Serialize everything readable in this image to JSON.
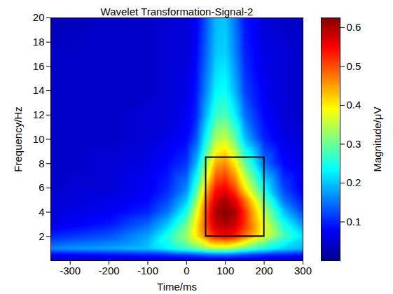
{
  "chart_data": {
    "type": "heatmap",
    "title": "Wavelet Transformation-Signal-2",
    "x_label": "Time/ms",
    "y_label": "Frequency/Hz",
    "xlim": [
      -350,
      300
    ],
    "xticks": [
      -300,
      -200,
      -100,
      0,
      100,
      200,
      300
    ],
    "ylim": [
      0,
      20
    ],
    "yticks": [
      2,
      4,
      6,
      8,
      10,
      12,
      14,
      16,
      18,
      20
    ],
    "x": [
      -350,
      -300,
      -200,
      -100,
      -50,
      0,
      25,
      50,
      75,
      100,
      125,
      150,
      200,
      250,
      300
    ],
    "y": [
      0,
      0.5,
      1,
      2,
      3,
      4,
      5,
      6,
      8,
      10,
      12,
      14,
      17,
      20
    ],
    "values": [
      [
        0.04,
        0.04,
        0.04,
        0.04,
        0.04,
        0.04,
        0.04,
        0.05,
        0.05,
        0.05,
        0.05,
        0.05,
        0.04,
        0.04,
        0.04
      ],
      [
        0.08,
        0.08,
        0.09,
        0.1,
        0.11,
        0.12,
        0.13,
        0.14,
        0.15,
        0.15,
        0.14,
        0.13,
        0.11,
        0.1,
        0.09
      ],
      [
        0.16,
        0.17,
        0.18,
        0.2,
        0.23,
        0.27,
        0.3,
        0.33,
        0.35,
        0.35,
        0.33,
        0.3,
        0.25,
        0.21,
        0.19
      ],
      [
        0.1,
        0.11,
        0.13,
        0.18,
        0.25,
        0.33,
        0.4,
        0.47,
        0.53,
        0.55,
        0.53,
        0.48,
        0.37,
        0.28,
        0.22
      ],
      [
        0.06,
        0.07,
        0.09,
        0.14,
        0.2,
        0.3,
        0.4,
        0.5,
        0.58,
        0.6,
        0.58,
        0.52,
        0.38,
        0.25,
        0.17
      ],
      [
        0.05,
        0.06,
        0.07,
        0.1,
        0.15,
        0.25,
        0.37,
        0.5,
        0.6,
        0.62,
        0.6,
        0.52,
        0.35,
        0.2,
        0.12
      ],
      [
        0.05,
        0.05,
        0.06,
        0.08,
        0.12,
        0.2,
        0.32,
        0.47,
        0.57,
        0.6,
        0.56,
        0.48,
        0.3,
        0.15,
        0.09
      ],
      [
        0.04,
        0.05,
        0.05,
        0.07,
        0.1,
        0.16,
        0.27,
        0.42,
        0.53,
        0.55,
        0.5,
        0.4,
        0.24,
        0.12,
        0.07
      ],
      [
        0.04,
        0.04,
        0.05,
        0.06,
        0.08,
        0.11,
        0.19,
        0.32,
        0.44,
        0.46,
        0.4,
        0.3,
        0.15,
        0.08,
        0.06
      ],
      [
        0.04,
        0.04,
        0.04,
        0.05,
        0.06,
        0.08,
        0.13,
        0.24,
        0.34,
        0.36,
        0.3,
        0.2,
        0.1,
        0.06,
        0.05
      ],
      [
        0.04,
        0.04,
        0.04,
        0.05,
        0.05,
        0.07,
        0.1,
        0.19,
        0.27,
        0.28,
        0.23,
        0.15,
        0.08,
        0.05,
        0.04
      ],
      [
        0.04,
        0.04,
        0.04,
        0.04,
        0.05,
        0.06,
        0.09,
        0.16,
        0.23,
        0.24,
        0.19,
        0.12,
        0.07,
        0.05,
        0.04
      ],
      [
        0.04,
        0.04,
        0.04,
        0.04,
        0.05,
        0.05,
        0.08,
        0.14,
        0.2,
        0.21,
        0.16,
        0.1,
        0.06,
        0.05,
        0.04
      ],
      [
        0.03,
        0.03,
        0.04,
        0.04,
        0.05,
        0.05,
        0.07,
        0.13,
        0.19,
        0.2,
        0.15,
        0.09,
        0.05,
        0.04,
        0.04
      ]
    ],
    "colorbar": {
      "range": [
        0,
        0.625
      ],
      "ticks": [
        0.1,
        0.2,
        0.3,
        0.4,
        0.5,
        0.6
      ],
      "label": "Magnitude/μV"
    },
    "box": {
      "x": [
        50,
        200
      ],
      "y": [
        2,
        8.5
      ]
    }
  }
}
